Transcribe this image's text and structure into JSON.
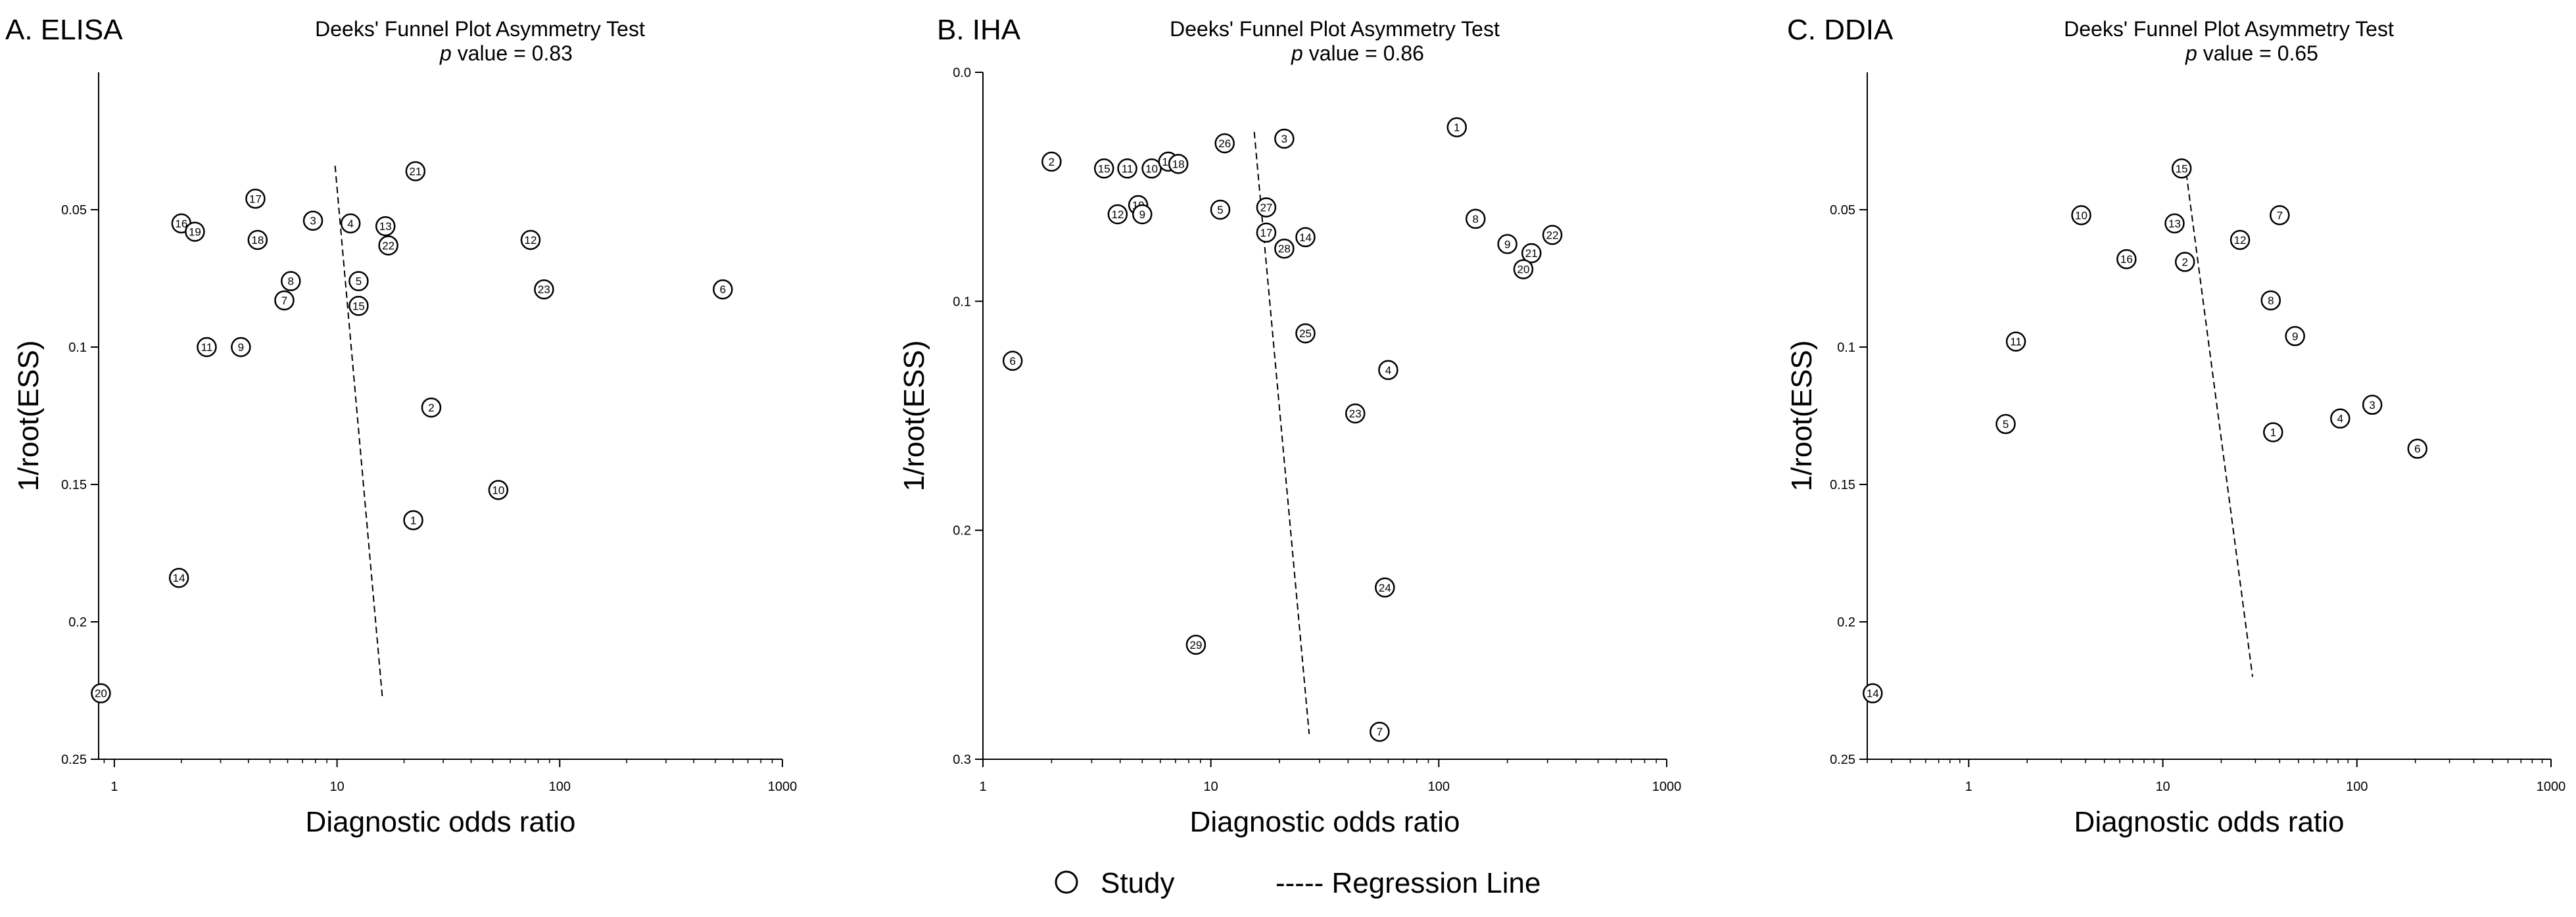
{
  "chart_data": [
    {
      "type": "scatter",
      "panel_label": "A. ELISA",
      "title": "Deeks' Funnel Plot Asymmetry Test",
      "p_symbol": "p",
      "p_text": "value =  0.83",
      "p_value": 0.83,
      "xlabel": "Diagnostic odds ratio",
      "ylabel": "1/root(ESS)",
      "xscale": "log",
      "xlim": [
        0.85,
        1000
      ],
      "ylim": [
        0.25,
        0.0
      ],
      "xticks": [
        1,
        10,
        100,
        1000
      ],
      "xtick_labels": [
        "1",
        "10",
        "100",
        "1000"
      ],
      "yticks": [
        0.05,
        0.1,
        0.15,
        0.2,
        0.25
      ],
      "ytick_labels": [
        "0.05",
        "0.1",
        "0.15",
        "0.2",
        "0.25"
      ],
      "points": [
        {
          "id": "16",
          "x": 2.0,
          "y": 0.055
        },
        {
          "id": "19",
          "x": 2.3,
          "y": 0.058
        },
        {
          "id": "17",
          "x": 4.3,
          "y": 0.046
        },
        {
          "id": "3",
          "x": 7.8,
          "y": 0.054
        },
        {
          "id": "18",
          "x": 4.4,
          "y": 0.061
        },
        {
          "id": "8",
          "x": 6.2,
          "y": 0.076
        },
        {
          "id": "7",
          "x": 5.8,
          "y": 0.083
        },
        {
          "id": "11",
          "x": 2.6,
          "y": 0.1
        },
        {
          "id": "9",
          "x": 3.7,
          "y": 0.1
        },
        {
          "id": "4",
          "x": 11.5,
          "y": 0.055
        },
        {
          "id": "5",
          "x": 12.5,
          "y": 0.076
        },
        {
          "id": "15",
          "x": 12.5,
          "y": 0.085
        },
        {
          "id": "13",
          "x": 16.5,
          "y": 0.056
        },
        {
          "id": "22",
          "x": 17.0,
          "y": 0.063
        },
        {
          "id": "21",
          "x": 22.5,
          "y": 0.036
        },
        {
          "id": "12",
          "x": 74.0,
          "y": 0.061
        },
        {
          "id": "23",
          "x": 85.0,
          "y": 0.079
        },
        {
          "id": "6",
          "x": 540.0,
          "y": 0.079
        },
        {
          "id": "2",
          "x": 26.5,
          "y": 0.122
        },
        {
          "id": "10",
          "x": 53.0,
          "y": 0.152
        },
        {
          "id": "1",
          "x": 22.0,
          "y": 0.163
        },
        {
          "id": "14",
          "x": 1.95,
          "y": 0.184
        },
        {
          "id": "20",
          "x": 0.87,
          "y": 0.226
        }
      ],
      "regression_line": {
        "x": [
          9.8,
          16.0
        ],
        "y": [
          0.034,
          0.228
        ]
      }
    },
    {
      "type": "scatter",
      "panel_label": "B. IHA",
      "title": "Deeks' Funnel Plot Asymmetry Test",
      "p_symbol": "p",
      "p_text": "value =  0.86",
      "p_value": 0.86,
      "xlabel": "Diagnostic odds ratio",
      "ylabel": "1/root(ESS)",
      "xscale": "log",
      "xlim": [
        1,
        1000
      ],
      "ylim": [
        0.3,
        0.0
      ],
      "xticks": [
        1,
        10,
        100,
        1000
      ],
      "xtick_labels": [
        "1",
        "10",
        "100",
        "1000"
      ],
      "yticks": [
        0.0,
        0.1,
        0.2,
        0.3
      ],
      "ytick_labels": [
        "0.0",
        "0.1",
        "0.2",
        "0.3"
      ],
      "points": [
        {
          "id": "2",
          "x": 2.0,
          "y": 0.039
        },
        {
          "id": "15",
          "x": 3.4,
          "y": 0.042
        },
        {
          "id": "11",
          "x": 4.3,
          "y": 0.042
        },
        {
          "id": "10",
          "x": 5.5,
          "y": 0.042
        },
        {
          "id": "16",
          "x": 6.5,
          "y": 0.039
        },
        {
          "id": "18",
          "x": 7.2,
          "y": 0.04
        },
        {
          "id": "26",
          "x": 11.5,
          "y": 0.031
        },
        {
          "id": "3",
          "x": 21.0,
          "y": 0.029
        },
        {
          "id": "19",
          "x": 4.8,
          "y": 0.058
        },
        {
          "id": "12",
          "x": 3.9,
          "y": 0.062
        },
        {
          "id": "9",
          "x": 5.0,
          "y": 0.062
        },
        {
          "id": "5",
          "x": 11.0,
          "y": 0.06
        },
        {
          "id": "27",
          "x": 17.5,
          "y": 0.059
        },
        {
          "id": "17",
          "x": 17.5,
          "y": 0.07
        },
        {
          "id": "28",
          "x": 21.0,
          "y": 0.077
        },
        {
          "id": "14",
          "x": 26.0,
          "y": 0.072
        },
        {
          "id": "1",
          "x": 120.0,
          "y": 0.024
        },
        {
          "id": "8",
          "x": 145.0,
          "y": 0.064
        },
        {
          "id": "9",
          "x": 200.0,
          "y": 0.075
        },
        {
          "id": "21",
          "x": 255.0,
          "y": 0.079
        },
        {
          "id": "20",
          "x": 235.0,
          "y": 0.086
        },
        {
          "id": "22",
          "x": 315.0,
          "y": 0.071
        },
        {
          "id": "25",
          "x": 26.0,
          "y": 0.114
        },
        {
          "id": "6",
          "x": 1.35,
          "y": 0.126
        },
        {
          "id": "4",
          "x": 60.0,
          "y": 0.13
        },
        {
          "id": "23",
          "x": 43.0,
          "y": 0.149
        },
        {
          "id": "24",
          "x": 58.0,
          "y": 0.225
        },
        {
          "id": "29",
          "x": 8.6,
          "y": 0.25
        },
        {
          "id": "7",
          "x": 55.0,
          "y": 0.288
        }
      ],
      "regression_line": {
        "x": [
          15.5,
          27.0
        ],
        "y": [
          0.026,
          0.289
        ]
      }
    },
    {
      "type": "scatter",
      "panel_label": "C. DDIA",
      "title": "Deeks' Funnel Plot Asymmetry Test",
      "p_symbol": "p",
      "p_text": "value =  0.65",
      "p_value": 0.65,
      "xlabel": "Diagnostic odds ratio",
      "ylabel": "1/root(ESS)",
      "xscale": "log",
      "xlim": [
        0.3,
        1000
      ],
      "ylim": [
        0.25,
        0.0
      ],
      "xticks": [
        1,
        10,
        100,
        1000
      ],
      "xtick_labels": [
        "1",
        "10",
        "100",
        "1000"
      ],
      "yticks": [
        0.05,
        0.1,
        0.15,
        0.2,
        0.25
      ],
      "ytick_labels": [
        "0.05",
        "0.1",
        "0.15",
        "0.2",
        "0.25"
      ],
      "points": [
        {
          "id": "15",
          "x": 12.5,
          "y": 0.035
        },
        {
          "id": "10",
          "x": 3.8,
          "y": 0.052
        },
        {
          "id": "13",
          "x": 11.5,
          "y": 0.055
        },
        {
          "id": "7",
          "x": 40.0,
          "y": 0.052
        },
        {
          "id": "12",
          "x": 25.0,
          "y": 0.061
        },
        {
          "id": "16",
          "x": 6.5,
          "y": 0.068
        },
        {
          "id": "2",
          "x": 13.0,
          "y": 0.069
        },
        {
          "id": "8",
          "x": 36.0,
          "y": 0.083
        },
        {
          "id": "11",
          "x": 1.75,
          "y": 0.098
        },
        {
          "id": "9",
          "x": 48.0,
          "y": 0.096
        },
        {
          "id": "3",
          "x": 120.0,
          "y": 0.121
        },
        {
          "id": "4",
          "x": 82.0,
          "y": 0.126
        },
        {
          "id": "5",
          "x": 1.55,
          "y": 0.128
        },
        {
          "id": "1",
          "x": 37.0,
          "y": 0.131
        },
        {
          "id": "6",
          "x": 205.0,
          "y": 0.137
        },
        {
          "id": "14",
          "x": 0.32,
          "y": 0.226
        }
      ],
      "regression_line": {
        "x": [
          13.0,
          29.0
        ],
        "y": [
          0.033,
          0.22
        ]
      }
    }
  ],
  "legend": {
    "study_label": "Study",
    "line_label": "----- Regression Line"
  }
}
